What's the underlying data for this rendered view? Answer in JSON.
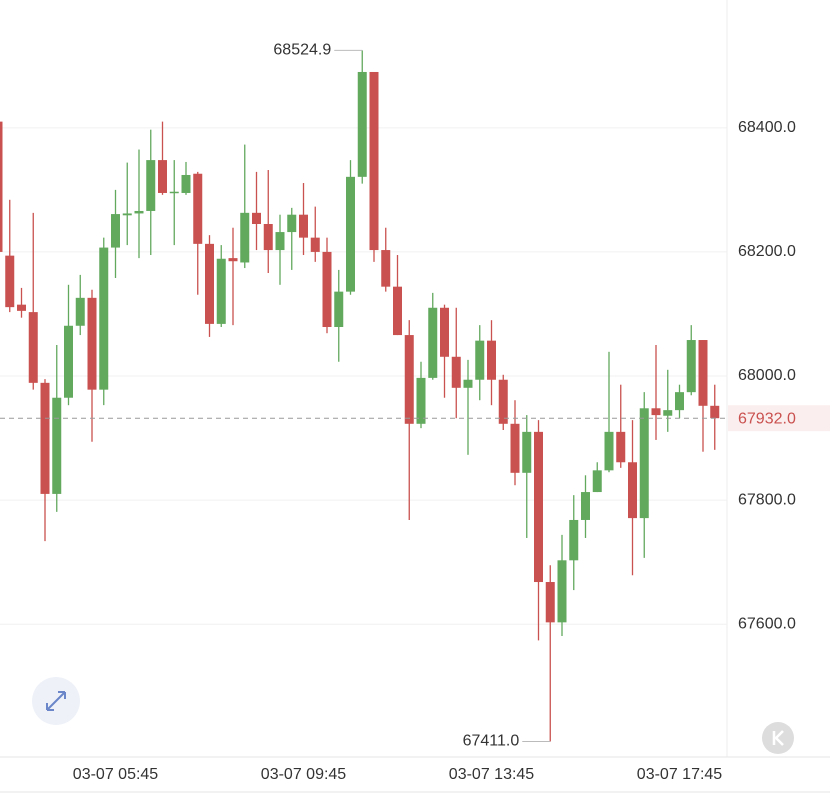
{
  "chart_data": {
    "type": "candlestick",
    "categories": [
      null,
      null,
      null,
      null,
      null,
      null,
      null,
      null,
      null,
      null,
      "03-07 05:45",
      null,
      null,
      null,
      null,
      null,
      null,
      null,
      null,
      null,
      null,
      null,
      null,
      null,
      null,
      null,
      "03-07 09:45",
      null,
      null,
      null,
      null,
      null,
      null,
      null,
      null,
      null,
      null,
      null,
      null,
      null,
      null,
      null,
      "03-07 13:45",
      null,
      null,
      null,
      null,
      null,
      null,
      null,
      null,
      null,
      null,
      null,
      null,
      null,
      null,
      null,
      "03-07 17:45",
      null,
      null,
      null
    ],
    "open": [
      68410,
      68194,
      68115,
      68103,
      67989,
      67810,
      67965,
      68081,
      68126,
      67978,
      68207,
      68259,
      68262,
      68266,
      68348,
      68295,
      68295,
      68326,
      68213,
      68084,
      68190,
      68183,
      68263,
      68245,
      68203,
      68232,
      68260,
      68223,
      68200,
      68079,
      68136,
      68321,
      68490,
      68203,
      68144,
      68066,
      67923,
      67997,
      68110,
      68031,
      67981,
      67994,
      68057,
      67994,
      67923,
      67844,
      67910,
      67668,
      67603,
      67703,
      67768,
      67813,
      67848,
      67910,
      67861,
      67771,
      67948,
      67936,
      67945,
      67974,
      68058,
      67952
    ],
    "high": [
      68410,
      68284,
      68142,
      68263,
      67995,
      68050,
      68147,
      68163,
      68139,
      68223,
      68300,
      68344,
      68365,
      68397,
      68410,
      68348,
      68345,
      68329,
      68227,
      68211,
      68239,
      68373,
      68329,
      68332,
      68260,
      68271,
      68311,
      68273,
      68223,
      68171,
      68348,
      68524.9,
      68490,
      68239,
      68195,
      68090,
      68023,
      68134,
      68115,
      68110,
      68026,
      68082,
      68090,
      68002,
      67961,
      67937,
      67929,
      67695,
      67744,
      67808,
      67840,
      67861,
      68039,
      67986,
      67929,
      67974,
      68050,
      68010,
      67986,
      68082,
      68058,
      67986
    ],
    "low": [
      68150,
      68103,
      68094,
      67978,
      67734,
      67781,
      67953,
      68066,
      67894,
      67953,
      68158,
      68211,
      68190,
      68195,
      68292,
      68211,
      68292,
      68131,
      68063,
      68079,
      68082,
      68174,
      68203,
      68166,
      68147,
      68171,
      68195,
      68184,
      68069,
      68023,
      68131,
      68310,
      68184,
      68136,
      68066,
      67768,
      67916,
      67994,
      67965,
      67932,
      67873,
      67961,
      67953,
      67913,
      67824,
      67739,
      67574,
      67411,
      67581,
      67655,
      67739,
      67813,
      67845,
      67852,
      67679,
      67707,
      67897,
      67910,
      67932,
      67969,
      67878,
      67881
    ],
    "close": [
      68200,
      68111,
      68105,
      67989,
      67810,
      67965,
      68081,
      68126,
      67978,
      68207,
      68261,
      68262,
      68266,
      68348,
      68295,
      68297,
      68324,
      68213,
      68084,
      68189,
      68185,
      68263,
      68245,
      68203,
      68232,
      68260,
      68223,
      68200,
      68079,
      68136,
      68321,
      68490,
      68203,
      68144,
      68066,
      67923,
      67997,
      68110,
      68031,
      67981,
      67994,
      68057,
      67994,
      67923,
      67844,
      67910,
      67668,
      67603,
      67703,
      67768,
      67813,
      67848,
      67910,
      67861,
      67771,
      67948,
      67937,
      67945,
      67974,
      68058,
      67952,
      67932
    ],
    "up_color": "#62a95e",
    "down_color": "#c9514f",
    "ylim": [
      67386,
      68606
    ],
    "yticks": [
      {
        "value": 67600,
        "label": "67600.0"
      },
      {
        "value": 67800,
        "label": "67800.0"
      },
      {
        "value": 68000,
        "label": "68000.0"
      },
      {
        "value": 68200,
        "label": "68200.0"
      },
      {
        "value": 68400,
        "label": "68400.0"
      }
    ],
    "grid": true,
    "max_label": {
      "value": 68524.9,
      "label": "68524.9"
    },
    "min_label": {
      "value": 67411,
      "label": "67411.0"
    },
    "last_price": {
      "value": 67932,
      "label": "67932.0"
    }
  }
}
